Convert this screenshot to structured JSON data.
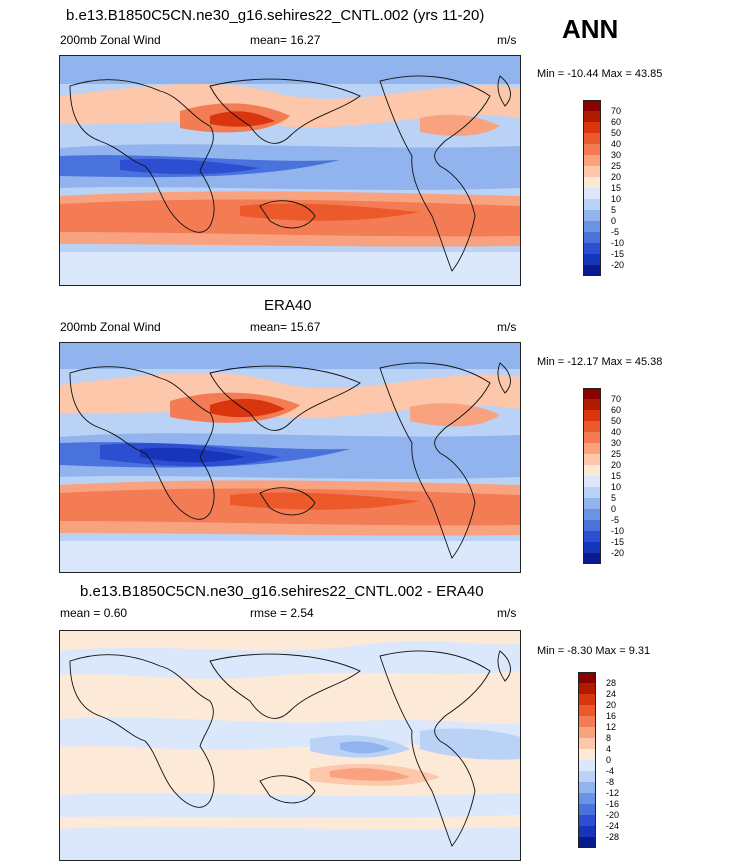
{
  "season": "ANN",
  "panels": [
    {
      "title": "b.e13.B1850C5CN.ne30_g16.sehires22_CNTL.002 (yrs 11-20)",
      "left_label": "200mb Zonal Wind",
      "center_label": "mean=  16.27",
      "units": "m/s",
      "minmax": "Min = -10.44 Max =  43.85",
      "levels": [
        "70",
        "60",
        "50",
        "40",
        "30",
        "25",
        "20",
        "15",
        "10",
        "5",
        "0",
        "-5",
        "-10",
        "-15",
        "-20"
      ],
      "colors": [
        "#8b0000",
        "#b21a00",
        "#d9350e",
        "#ec5a2c",
        "#f47c55",
        "#f9a27f",
        "#fcc7aa",
        "#fde9d8",
        "#dbe8fb",
        "#b9d2f6",
        "#91b4ee",
        "#6b93e4",
        "#4a72dc",
        "#2c4fd2",
        "#1834b8",
        "#0a1a8c"
      ]
    },
    {
      "title": "ERA40",
      "left_label": "200mb Zonal Wind",
      "center_label": "mean=  15.67",
      "units": "m/s",
      "minmax": "Min = -12.17 Max =  45.38",
      "levels": [
        "70",
        "60",
        "50",
        "40",
        "30",
        "25",
        "20",
        "15",
        "10",
        "5",
        "0",
        "-5",
        "-10",
        "-15",
        "-20"
      ],
      "colors": [
        "#8b0000",
        "#b21a00",
        "#d9350e",
        "#ec5a2c",
        "#f47c55",
        "#f9a27f",
        "#fcc7aa",
        "#fde9d8",
        "#dbe8fb",
        "#b9d2f6",
        "#91b4ee",
        "#6b93e4",
        "#4a72dc",
        "#2c4fd2",
        "#1834b8",
        "#0a1a8c"
      ]
    },
    {
      "title": "b.e13.B1850C5CN.ne30_g16.sehires22_CNTL.002 - ERA40",
      "left_label": "mean =   0.60",
      "center_label": "rmse =   2.54",
      "units": "m/s",
      "minmax": "Min =  -8.30 Max =   9.31",
      "levels": [
        "28",
        "24",
        "20",
        "16",
        "12",
        "8",
        "4",
        "0",
        "-4",
        "-8",
        "-12",
        "-16",
        "-20",
        "-24",
        "-28"
      ],
      "colors": [
        "#8b0000",
        "#b21a00",
        "#d9350e",
        "#ec5a2c",
        "#f47c55",
        "#f9a27f",
        "#fcc7aa",
        "#fde9d8",
        "#dbe8fb",
        "#b9d2f6",
        "#91b4ee",
        "#6b93e4",
        "#4a72dc",
        "#2c4fd2",
        "#1834b8",
        "#0a1a8c"
      ]
    }
  ]
}
